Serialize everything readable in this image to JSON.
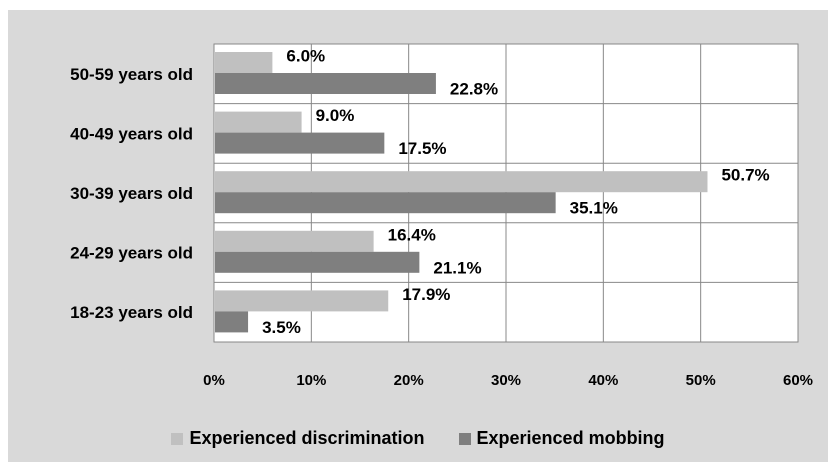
{
  "chart_data": {
    "type": "bar",
    "orientation": "horizontal",
    "categories": [
      "50-59 years old",
      "40-49 years old",
      "30-39 years old",
      "24-29 years old",
      "18-23 years old"
    ],
    "series": [
      {
        "name": "Experienced discrimination",
        "values": [
          6.0,
          9.0,
          50.7,
          16.4,
          17.9
        ],
        "labels": [
          "6.0%",
          "9.0%",
          "50.7%",
          "16.4%",
          "17.9%"
        ],
        "color": "#c0c0c0"
      },
      {
        "name": "Experienced mobbing",
        "values": [
          22.8,
          17.5,
          35.1,
          21.1,
          3.5
        ],
        "labels": [
          "22.8%",
          "17.5%",
          "35.1%",
          "21.1%",
          "3.5%"
        ],
        "color": "#7f7f7f"
      }
    ],
    "xlim": [
      0,
      60
    ],
    "xticks": [
      "0%",
      "10%",
      "20%",
      "30%",
      "40%",
      "50%",
      "60%"
    ],
    "grid": true,
    "legend_position": "bottom",
    "plot_background": "#ffffff",
    "chart_background": "#d9d9d9",
    "gridline_color": "#888888"
  }
}
